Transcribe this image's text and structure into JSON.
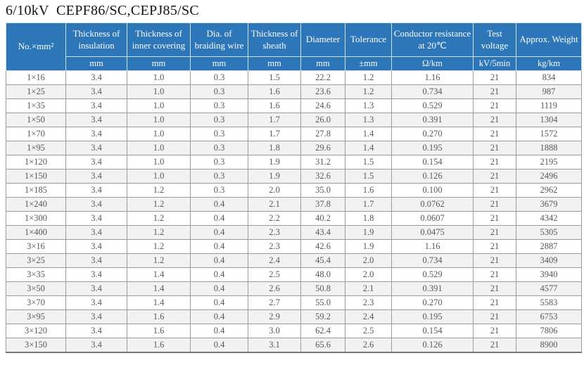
{
  "title": "6/10kV  CEPF86/SC,CEPJ85/SC",
  "colors": {
    "header_bg": "#2d76b8",
    "header_text": "#fdfdfd",
    "row_stripe": "#f2f2f2",
    "grid_line": "#9b9b9b",
    "body_text": "#595959"
  },
  "table": {
    "columns": [
      {
        "label": "No.×mm²",
        "unit": null
      },
      {
        "label": "Thickness of insulation",
        "unit": "mm"
      },
      {
        "label": "Thickness of inner covering",
        "unit": "mm"
      },
      {
        "label": "Dia. of braiding wire",
        "unit": "mm"
      },
      {
        "label": "Thickness of sheath",
        "unit": "mm"
      },
      {
        "label": "Diameter",
        "unit": "mm"
      },
      {
        "label": "Tolerance",
        "unit": "±mm"
      },
      {
        "label": "Conductor resistance at 20℃",
        "unit": "Ω/km"
      },
      {
        "label": "Test voltage",
        "unit": "kV/5min"
      },
      {
        "label": "Approx. Weight",
        "unit": "kg/km"
      }
    ],
    "rows": [
      [
        "1×16",
        "3.4",
        "1.0",
        "0.3",
        "1.5",
        "22.2",
        "1.2",
        "1.16",
        "21",
        "834"
      ],
      [
        "1×25",
        "3.4",
        "1.0",
        "0.3",
        "1.6",
        "23.6",
        "1.2",
        "0.734",
        "21",
        "987"
      ],
      [
        "1×35",
        "3.4",
        "1.0",
        "0.3",
        "1.6",
        "24.6",
        "1.3",
        "0.529",
        "21",
        "1119"
      ],
      [
        "1×50",
        "3.4",
        "1.0",
        "0.3",
        "1.7",
        "26.0",
        "1.3",
        "0.391",
        "21",
        "1304"
      ],
      [
        "1×70",
        "3.4",
        "1.0",
        "0.3",
        "1.7",
        "27.8",
        "1.4",
        "0.270",
        "21",
        "1572"
      ],
      [
        "1×95",
        "3.4",
        "1.0",
        "0.3",
        "1.8",
        "29.6",
        "1.4",
        "0.195",
        "21",
        "1888"
      ],
      [
        "1×120",
        "3.4",
        "1.0",
        "0.3",
        "1.9",
        "31.2",
        "1.5",
        "0.154",
        "21",
        "2195"
      ],
      [
        "1×150",
        "3.4",
        "1.0",
        "0.3",
        "1.9",
        "32.6",
        "1.5",
        "0.126",
        "21",
        "2496"
      ],
      [
        "1×185",
        "3.4",
        "1.2",
        "0.3",
        "2.0",
        "35.0",
        "1.6",
        "0.100",
        "21",
        "2962"
      ],
      [
        "1×240",
        "3.4",
        "1.2",
        "0.4",
        "2.1",
        "37.8",
        "1.7",
        "0.0762",
        "21",
        "3679"
      ],
      [
        "1×300",
        "3.4",
        "1.2",
        "0.4",
        "2.2",
        "40.2",
        "1.8",
        "0.0607",
        "21",
        "4342"
      ],
      [
        "1×400",
        "3.4",
        "1.2",
        "0.4",
        "2.3",
        "43.4",
        "1.9",
        "0.0475",
        "21",
        "5305"
      ],
      [
        "3×16",
        "3.4",
        "1.2",
        "0.4",
        "2.3",
        "42.6",
        "1.9",
        "1.16",
        "21",
        "2887"
      ],
      [
        "3×25",
        "3.4",
        "1.2",
        "0.4",
        "2.4",
        "45.4",
        "2.0",
        "0.734",
        "21",
        "3409"
      ],
      [
        "3×35",
        "3.4",
        "1.4",
        "0.4",
        "2.5",
        "48.0",
        "2.0",
        "0.529",
        "21",
        "3940"
      ],
      [
        "3×50",
        "3.4",
        "1.4",
        "0.4",
        "2.6",
        "50.8",
        "2.1",
        "0.391",
        "21",
        "4577"
      ],
      [
        "3×70",
        "3.4",
        "1.4",
        "0.4",
        "2.7",
        "55.0",
        "2.3",
        "0.270",
        "21",
        "5583"
      ],
      [
        "3×95",
        "3.4",
        "1.6",
        "0.4",
        "2.9",
        "59.2",
        "2.4",
        "0.195",
        "21",
        "6753"
      ],
      [
        "3×120",
        "3.4",
        "1.6",
        "0.4",
        "3.0",
        "62.4",
        "2.5",
        "0.154",
        "21",
        "7806"
      ],
      [
        "3×150",
        "3.4",
        "1.6",
        "0.4",
        "3.1",
        "65.6",
        "2.6",
        "0.126",
        "21",
        "8900"
      ]
    ]
  }
}
